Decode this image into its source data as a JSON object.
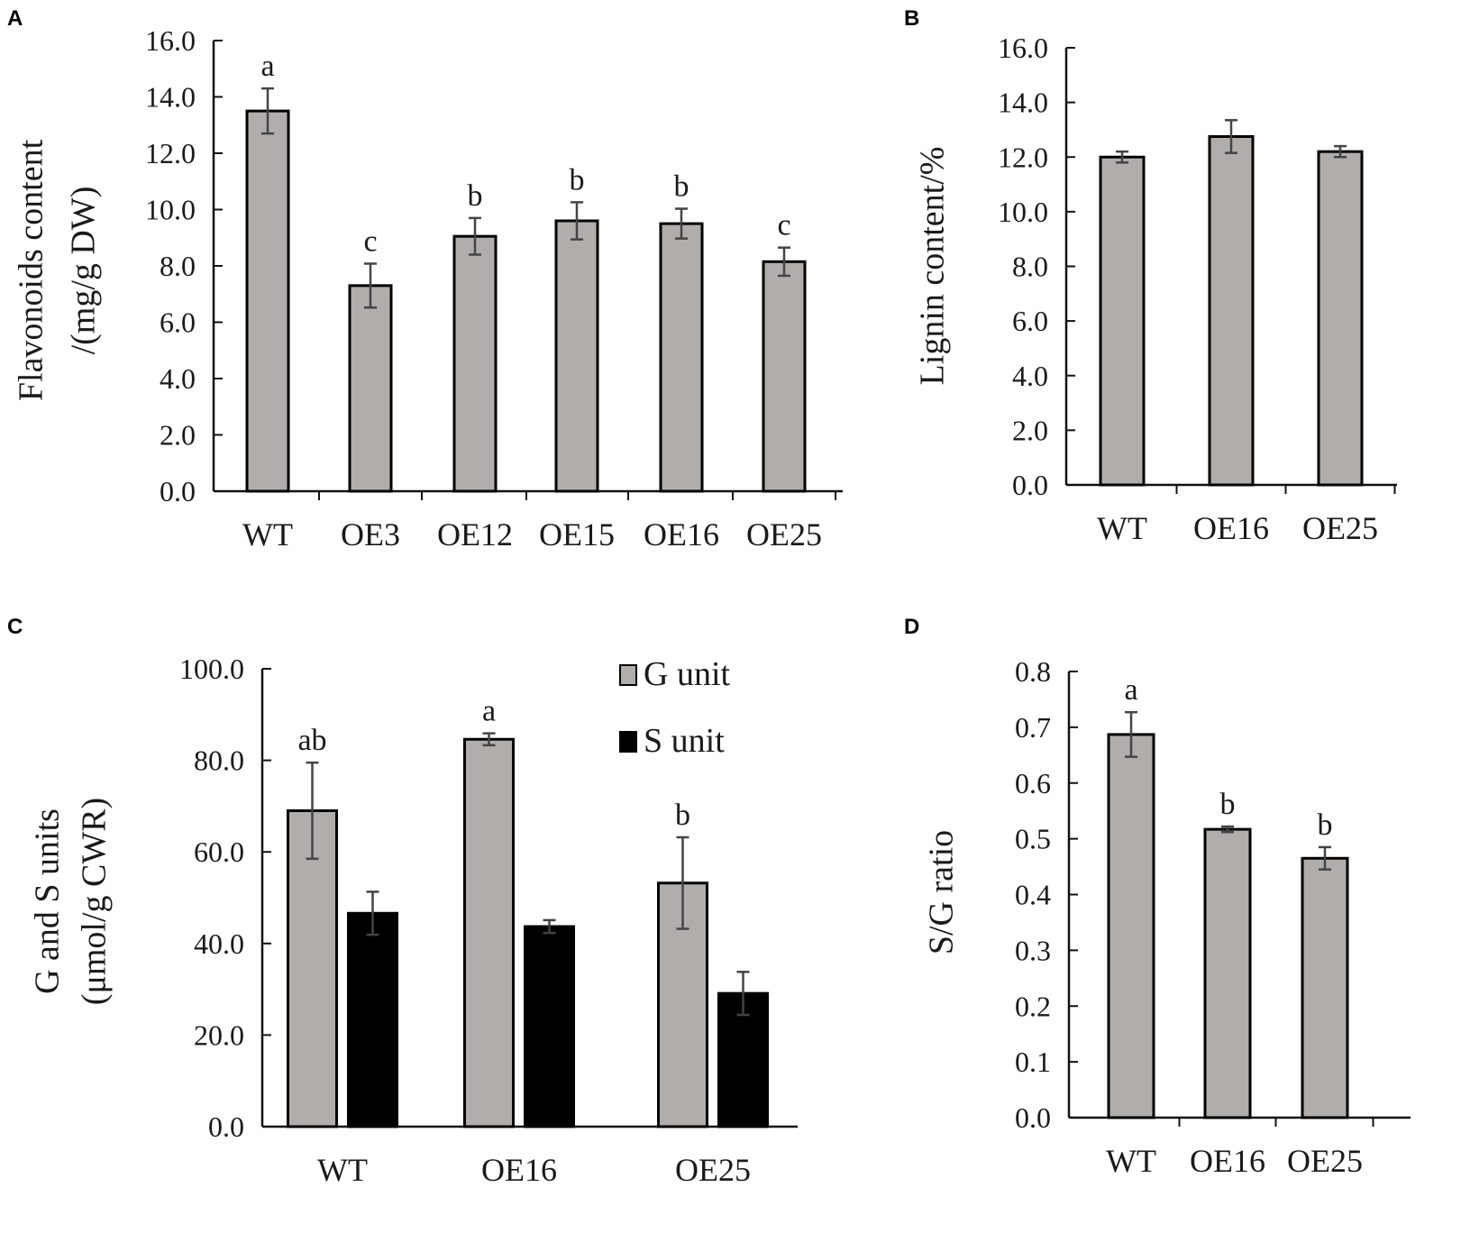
{
  "chart_data": [
    {
      "panel": "A",
      "type": "bar",
      "title": "",
      "xlabel": "",
      "ylabel": [
        "Flavonoids content",
        "/(mg/g DW)"
      ],
      "ylim": [
        0,
        16
      ],
      "yticks": [
        "0.0",
        "2.0",
        "4.0",
        "6.0",
        "8.0",
        "10.0",
        "12.0",
        "14.0",
        "16.0"
      ],
      "categories": [
        "WT",
        "OE3",
        "OE12",
        "OE15",
        "OE16",
        "OE25"
      ],
      "series": [
        {
          "name": "Flavonoids",
          "color": "#b0adab",
          "values": [
            13.5,
            7.3,
            9.05,
            9.6,
            9.5,
            8.15
          ],
          "errors": [
            0.8,
            0.78,
            0.65,
            0.66,
            0.53,
            0.5
          ],
          "annotations": [
            "a",
            "c",
            "b",
            "b",
            "b",
            "c"
          ]
        }
      ],
      "grid": false
    },
    {
      "panel": "B",
      "type": "bar",
      "title": "",
      "xlabel": "",
      "ylabel": [
        "Lignin content/%"
      ],
      "ylim": [
        0,
        16
      ],
      "yticks": [
        "0.0",
        "2.0",
        "4.0",
        "6.0",
        "8.0",
        "10.0",
        "12.0",
        "14.0",
        "16.0"
      ],
      "categories": [
        "WT",
        "OE16",
        "OE25"
      ],
      "series": [
        {
          "name": "Lignin",
          "color": "#b0adab",
          "values": [
            12.0,
            12.75,
            12.2
          ],
          "errors": [
            0.2,
            0.6,
            0.2
          ],
          "annotations": [
            "",
            "",
            ""
          ]
        }
      ],
      "grid": false
    },
    {
      "panel": "C",
      "type": "bar",
      "title": "",
      "xlabel": "",
      "ylabel": [
        "G and S units",
        "(μmol/g CWR)"
      ],
      "ylim": [
        0,
        100
      ],
      "yticks": [
        "0.0",
        "20.0",
        "40.0",
        "60.0",
        "80.0",
        "100.0"
      ],
      "categories": [
        "WT",
        "OE16",
        "OE25"
      ],
      "legend_position": "top-right",
      "series": [
        {
          "name": "G unit",
          "color": "#b0adab",
          "values": [
            69.0,
            84.6,
            53.2
          ],
          "errors": [
            10.5,
            1.3,
            10.0
          ],
          "annotations": [
            "ab",
            "a",
            "b"
          ]
        },
        {
          "name": "S unit",
          "color": "#000000",
          "values": [
            46.6,
            43.7,
            29.1
          ],
          "errors": [
            4.7,
            1.4,
            4.7
          ],
          "annotations": [
            "",
            "",
            ""
          ]
        }
      ],
      "grid": false
    },
    {
      "panel": "D",
      "type": "bar",
      "title": "",
      "xlabel": "",
      "ylabel": [
        "S/G ratio"
      ],
      "ylim": [
        0,
        0.8
      ],
      "yticks": [
        "0.0",
        "0.1",
        "0.2",
        "0.3",
        "0.4",
        "0.5",
        "0.6",
        "0.7",
        "0.8"
      ],
      "categories": [
        "WT",
        "OE16",
        "OE25"
      ],
      "series": [
        {
          "name": "S/G ratio",
          "color": "#b0adab",
          "values": [
            0.687,
            0.517,
            0.465
          ],
          "errors": [
            0.04,
            0.005,
            0.02
          ],
          "annotations": [
            "a",
            "b",
            "b"
          ]
        }
      ],
      "grid": false
    }
  ]
}
